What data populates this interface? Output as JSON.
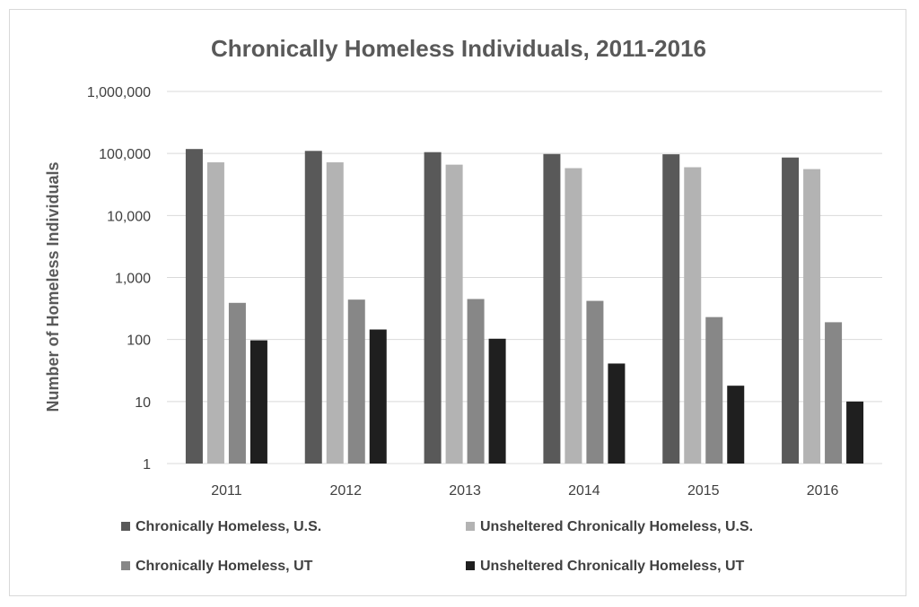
{
  "chart_data": {
    "type": "bar",
    "title": "Chronically Homeless Individuals, 2011-2016",
    "xlabel": "",
    "ylabel": "Number of Homeless Individuals",
    "y_scale": "log",
    "ylim": [
      1,
      1000000
    ],
    "y_ticks": [
      "1",
      "10",
      "100",
      "1,000",
      "10,000",
      "100,000",
      "1,000,000"
    ],
    "grid": true,
    "legend_position": "bottom",
    "categories": [
      "2011",
      "2012",
      "2013",
      "2014",
      "2015",
      "2016"
    ],
    "series": [
      {
        "name": "Chronically Homeless, U.S.",
        "color": "#595959",
        "values": [
          118000,
          110000,
          105000,
          98000,
          97000,
          86000
        ]
      },
      {
        "name": "Unsheltered Chronically Homeless, U.S.",
        "color": "#b3b3b3",
        "values": [
          72000,
          72000,
          66000,
          58000,
          60000,
          56000
        ]
      },
      {
        "name": "Chronically Homeless, UT",
        "color": "#878787",
        "values": [
          390,
          440,
          450,
          420,
          230,
          190
        ]
      },
      {
        "name": "Unsheltered Chronically Homeless, UT",
        "color": "#1f1f1f",
        "values": [
          97,
          145,
          103,
          41,
          18,
          10
        ]
      }
    ]
  }
}
